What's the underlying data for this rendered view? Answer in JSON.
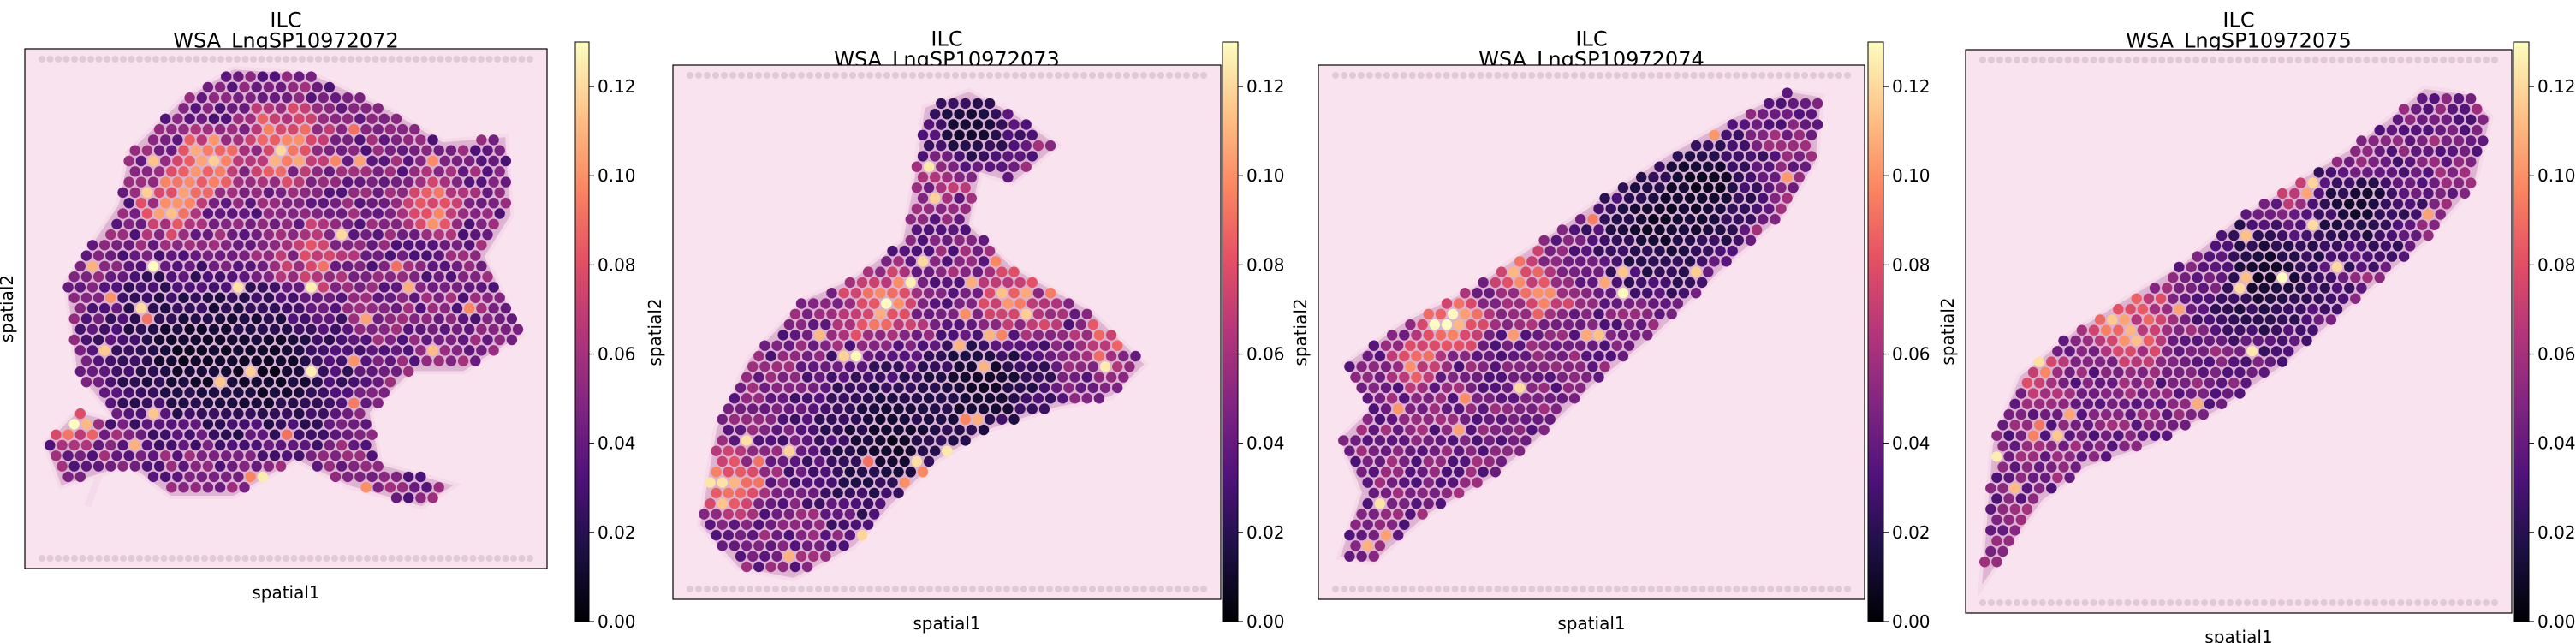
{
  "figure": {
    "colormap": "magma",
    "colormap_stops": [
      "#000004",
      "#1c1044",
      "#4f127b",
      "#812581",
      "#b5367a",
      "#e55064",
      "#fb8761",
      "#fec287",
      "#fcfdbf"
    ]
  },
  "chart_data": [
    {
      "type": "scatter",
      "title_line1": "ILC",
      "title_line2": "WSA_LngSP10972072",
      "xlabel": "spatial1",
      "ylabel": "spatial2",
      "colorbar": {
        "min": 0.0,
        "max": 0.13,
        "ticks": [
          0.0,
          0.02,
          0.04,
          0.06,
          0.08,
          0.1,
          0.12
        ],
        "tick_labels": [
          "0.00",
          "0.02",
          "0.04",
          "0.06",
          "0.08",
          "0.10",
          "0.12"
        ]
      },
      "tissue_region_description": "broad lobed tissue covering upper and central area, with high-value spots along upper edge and left lobe",
      "spot_value_range": [
        0.0,
        0.13
      ]
    },
    {
      "type": "scatter",
      "title_line1": "ILC",
      "title_line2": "WSA_LngSP10972073",
      "xlabel": "spatial1",
      "ylabel": "spatial2",
      "colorbar": {
        "min": 0.0,
        "max": 0.13,
        "ticks": [
          0.0,
          0.02,
          0.04,
          0.06,
          0.08,
          0.1,
          0.12
        ],
        "tick_labels": [
          "0.00",
          "0.02",
          "0.04",
          "0.06",
          "0.08",
          "0.10",
          "0.12"
        ]
      },
      "spot_value_range": [
        0.0,
        0.13
      ]
    },
    {
      "type": "scatter",
      "title_line1": "ILC",
      "title_line2": "WSA_LngSP10972074",
      "xlabel": "spatial1",
      "ylabel": "spatial2",
      "colorbar": {
        "min": 0.0,
        "max": 0.13,
        "ticks": [
          0.0,
          0.02,
          0.04,
          0.06,
          0.08,
          0.1,
          0.12
        ],
        "tick_labels": [
          "0.00",
          "0.02",
          "0.04",
          "0.06",
          "0.08",
          "0.10",
          "0.12"
        ]
      },
      "spot_value_range": [
        0.0,
        0.13
      ]
    },
    {
      "type": "scatter",
      "title_line1": "ILC",
      "title_line2": "WSA_LngSP10972075",
      "xlabel": "spatial1",
      "ylabel": "spatial2",
      "colorbar": {
        "min": 0.0,
        "max": 0.13,
        "ticks": [
          0.0,
          0.02,
          0.04,
          0.06,
          0.08,
          0.1,
          0.12
        ],
        "tick_labels": [
          "0.00",
          "0.02",
          "0.04",
          "0.06",
          "0.08",
          "0.10",
          "0.12"
        ]
      },
      "spot_value_range": [
        0.0,
        0.13
      ]
    }
  ]
}
